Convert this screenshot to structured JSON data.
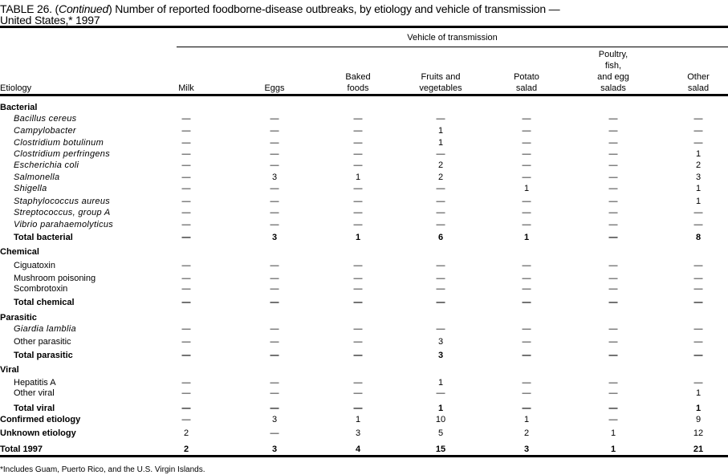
{
  "title": {
    "prefix": "TABLE 26. (",
    "continued": "Continued",
    "text": ") Number of reported foodborne-disease  outbreaks, by etiology and vehicle of transmission —",
    "line2": "United States,* 1997"
  },
  "header": {
    "group_label": "Vehicle of transmission",
    "etiology_label": "Etiology",
    "columns": [
      [
        "Milk"
      ],
      [
        "Eggs"
      ],
      [
        "Baked",
        "foods"
      ],
      [
        "Fruits and",
        "vegetables"
      ],
      [
        "Potato",
        "salad"
      ],
      [
        "Poultry,",
        "fish,",
        "and egg",
        "salads"
      ],
      [
        "Other",
        "salad"
      ]
    ]
  },
  "rows": [
    {
      "label": "Bacterial",
      "type": "section",
      "values": []
    },
    {
      "label": "Bacillus cereus",
      "type": "italic",
      "values": [
        "—",
        "—",
        "—",
        "—",
        "—",
        "—",
        "—"
      ]
    },
    {
      "label": "Campylobacter",
      "type": "italic",
      "values": [
        "—",
        "—",
        "—",
        "1",
        "—",
        "—",
        "—"
      ]
    },
    {
      "label": "Clostridium botulinum",
      "type": "italic",
      "values": [
        "—",
        "—",
        "—",
        "1",
        "—",
        "—",
        "—"
      ]
    },
    {
      "label": "Clostridium perfringens",
      "type": "italic",
      "values": [
        "—",
        "—",
        "—",
        "—",
        "—",
        "—",
        "1"
      ]
    },
    {
      "label": "Escherichia coli",
      "type": "italic",
      "values": [
        "—",
        "—",
        "—",
        "2",
        "—",
        "—",
        "2"
      ]
    },
    {
      "label": "Salmonella",
      "type": "italic",
      "values": [
        "—",
        "3",
        "1",
        "2",
        "—",
        "—",
        "3"
      ]
    },
    {
      "label": "Shigella",
      "type": "italic",
      "values": [
        "—",
        "—",
        "—",
        "—",
        "1",
        "—",
        "1"
      ]
    },
    {
      "label": "Staphylococcus aureus",
      "type": "italic",
      "values": [
        "—",
        "—",
        "—",
        "—",
        "—",
        "—",
        "1"
      ]
    },
    {
      "label": "Streptococcus, group A",
      "type": "italic",
      "values": [
        "—",
        "—",
        "—",
        "—",
        "—",
        "—",
        "—"
      ]
    },
    {
      "label": "Vibrio parahaemolyticus",
      "type": "italic",
      "values": [
        "—",
        "—",
        "—",
        "—",
        "—",
        "—",
        "—"
      ]
    },
    {
      "label": "Total bacterial",
      "type": "total",
      "values": [
        "—",
        "3",
        "1",
        "6",
        "1",
        "—",
        "8"
      ]
    },
    {
      "label": "Chemical",
      "type": "section",
      "values": []
    },
    {
      "label": "Ciguatoxin",
      "type": "item",
      "values": [
        "—",
        "—",
        "—",
        "—",
        "—",
        "—",
        "—"
      ]
    },
    {
      "label": "Mushroom poisoning",
      "type": "item",
      "values": [
        "—",
        "—",
        "—",
        "—",
        "—",
        "—",
        "—"
      ]
    },
    {
      "label": "Scombrotoxin",
      "type": "item",
      "values": [
        "—",
        "—",
        "—",
        "—",
        "—",
        "—",
        "—"
      ]
    },
    {
      "label": "Total chemical",
      "type": "total",
      "values": [
        "—",
        "—",
        "—",
        "—",
        "—",
        "—",
        "—"
      ]
    },
    {
      "label": "Parasitic",
      "type": "section",
      "values": []
    },
    {
      "label": "Giardia lamblia",
      "type": "italic",
      "values": [
        "—",
        "—",
        "—",
        "—",
        "—",
        "—",
        "—"
      ]
    },
    {
      "label": "Other parasitic",
      "type": "item",
      "values": [
        "—",
        "—",
        "—",
        "3",
        "—",
        "—",
        "—"
      ]
    },
    {
      "label": "Total parasitic",
      "type": "total",
      "values": [
        "—",
        "—",
        "—",
        "3",
        "—",
        "—",
        "—"
      ]
    },
    {
      "label": "Viral",
      "type": "section",
      "values": []
    },
    {
      "label": "Hepatitis A",
      "type": "item",
      "values": [
        "—",
        "—",
        "—",
        "1",
        "—",
        "—",
        "—"
      ]
    },
    {
      "label": "Other viral",
      "type": "item",
      "values": [
        "—",
        "—",
        "—",
        "—",
        "—",
        "—",
        "1"
      ]
    },
    {
      "label": "Total viral",
      "type": "total",
      "values": [
        "—",
        "—",
        "—",
        "1",
        "—",
        "—",
        "1"
      ]
    },
    {
      "label": "Confirmed etiology",
      "type": "summary",
      "values": [
        "—",
        "3",
        "1",
        "10",
        "1",
        "—",
        "9"
      ]
    },
    {
      "label": "Unknown etiology",
      "type": "summary",
      "values": [
        "2",
        "—",
        "3",
        "5",
        "2",
        "1",
        "12"
      ]
    },
    {
      "label": "Total 1997",
      "type": "grand",
      "values": [
        "2",
        "3",
        "4",
        "15",
        "3",
        "1",
        "21"
      ]
    }
  ],
  "footnote": "*Includes Guam, Puerto Rico, and the U.S. Virgin Islands."
}
